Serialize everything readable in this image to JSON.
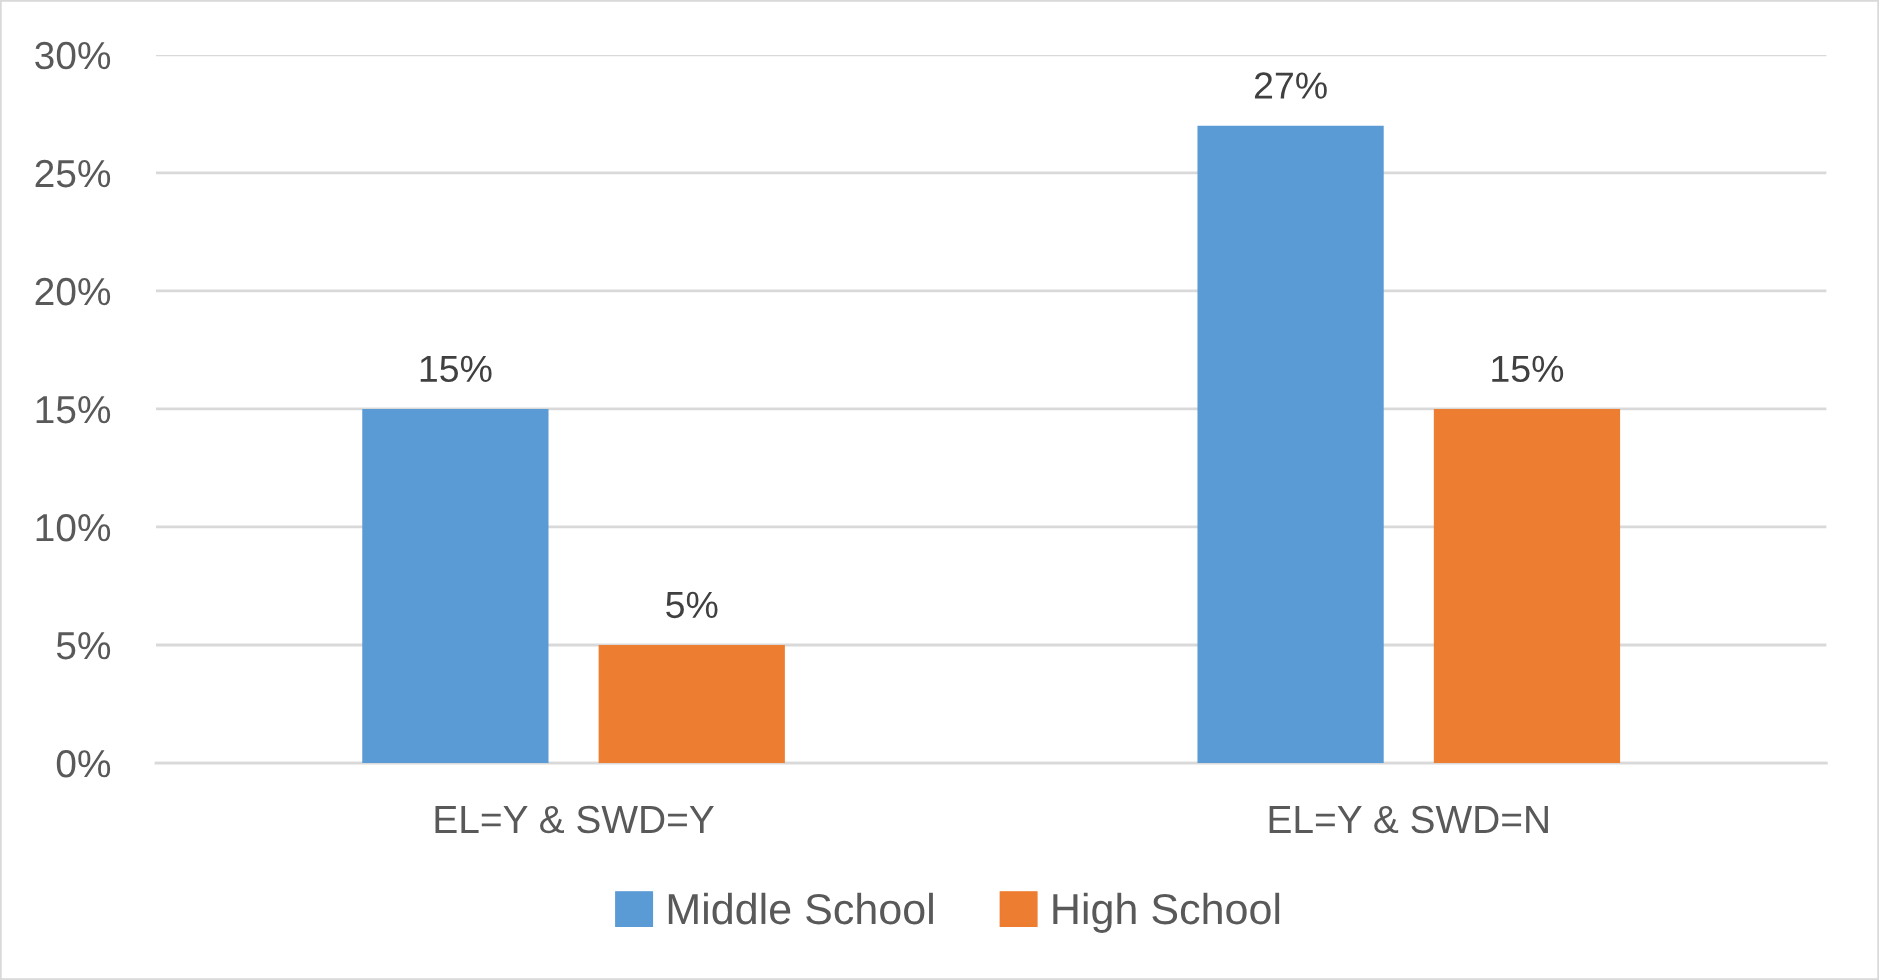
{
  "chart_data": {
    "type": "bar",
    "categories": [
      "EL=Y & SWD=Y",
      "EL=Y & SWD=N"
    ],
    "series": [
      {
        "name": "Middle School",
        "color": "#5b9bd5",
        "values": [
          15,
          27
        ],
        "value_labels": [
          "15%",
          "27%"
        ]
      },
      {
        "name": "High School",
        "color": "#ed7d31",
        "values": [
          5,
          15
        ],
        "value_labels": [
          "5%",
          "15%"
        ]
      }
    ],
    "ylim": [
      0,
      30
    ],
    "yticks": [
      {
        "value": 0,
        "label": "0%"
      },
      {
        "value": 5,
        "label": "5%"
      },
      {
        "value": 10,
        "label": "10%"
      },
      {
        "value": 15,
        "label": "15%"
      },
      {
        "value": 20,
        "label": "20%"
      },
      {
        "value": 25,
        "label": "25%"
      },
      {
        "value": 30,
        "label": "30%"
      }
    ],
    "grid": "y",
    "legend": "bottom"
  }
}
